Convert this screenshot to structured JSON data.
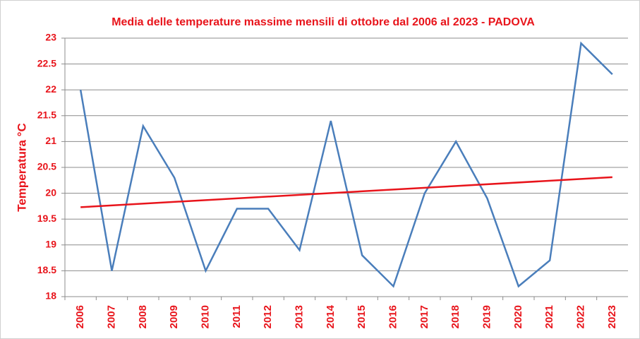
{
  "chart_data": {
    "type": "line",
    "title": "Media delle temperature massime mensili di  ottobre dal 2006 al 2023 - PADOVA",
    "y_label": "Temperatura  °C",
    "categories": [
      "2006",
      "2007",
      "2008",
      "2009",
      "2010",
      "2011",
      "2012",
      "2013",
      "2014",
      "2015",
      "2016",
      "2017",
      "2018",
      "2019",
      "2020",
      "2021",
      "2022",
      "2023"
    ],
    "series": [
      {
        "color": "#4a7ebb",
        "values": [
          22.0,
          18.5,
          21.3,
          20.3,
          18.5,
          19.7,
          19.7,
          18.9,
          21.4,
          18.8,
          18.2,
          20.0,
          21.0,
          19.9,
          18.2,
          18.7,
          22.9,
          22.3
        ]
      }
    ],
    "trend": {
      "color": "#e8141b",
      "values": [
        19.73,
        20.31
      ]
    },
    "ylim": [
      18,
      23
    ],
    "yticks": [
      18,
      18.5,
      19,
      19.5,
      20,
      20.5,
      21,
      21.5,
      22,
      22.5,
      23
    ],
    "grid": true,
    "label_color": "#e8141b"
  }
}
